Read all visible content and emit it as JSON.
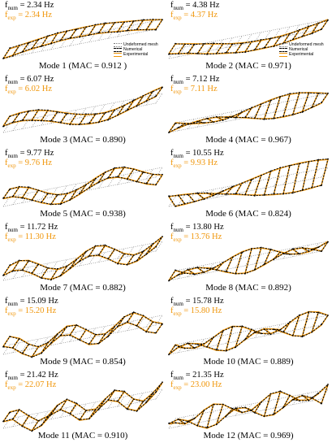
{
  "colors": {
    "experimental": "#f0960a",
    "numerical": "#000000",
    "undeformed": "#888888"
  },
  "legend": {
    "undeformed": "Undeformed mesh",
    "numerical": "Numerical",
    "experimental": "Experimental"
  },
  "modes": [
    {
      "caption": "Mode 1 (MAC = 0.912 )",
      "fnum": "= 2.34 Hz",
      "fexp": "= 2.34 Hz"
    },
    {
      "caption": "Mode 2 (MAC = 0.971)",
      "fnum": "= 4.38 Hz",
      "fexp": "= 4.37 Hz"
    },
    {
      "caption": "Mode 3 (MAC = 0.890)",
      "fnum": "= 6.07 Hz",
      "fexp": "= 6.02 Hz"
    },
    {
      "caption": "Mode 4 (MAC = 0.967)",
      "fnum": "= 7.12 Hz",
      "fexp": "= 7.11 Hz"
    },
    {
      "caption": "Mode 5 (MAC = 0.938)",
      "fnum": "= 9.77 Hz",
      "fexp": "= 9.76 Hz"
    },
    {
      "caption": "Mode 6 (MAC = 0.824)",
      "fnum": "= 10.55 Hz",
      "fexp": "= 9.93 Hz"
    },
    {
      "caption": "Mode 7 (MAC = 0.882)",
      "fnum": "= 11.72 Hz",
      "fexp": "= 11.30 Hz"
    },
    {
      "caption": "Mode 8 (MAC = 0.892)",
      "fnum": "= 13.80 Hz",
      "fexp": "= 13.76 Hz"
    },
    {
      "caption": "Mode 9 (MAC = 0.854)",
      "fnum": "= 15.09 Hz",
      "fexp": "= 15.20 Hz"
    },
    {
      "caption": "Mode 10 (MAC = 0.889)",
      "fnum": "= 15.78 Hz",
      "fexp": "= 15.80 Hz"
    },
    {
      "caption": "Mode 11 (MAC = 0.910)",
      "fnum": "= 21.42 Hz",
      "fexp": "= 22.07 Hz"
    },
    {
      "caption": "Mode 12 (MAC = 0.969)",
      "fnum": "= 21.35 Hz",
      "fexp": "= 23.00 Hz"
    }
  ]
}
